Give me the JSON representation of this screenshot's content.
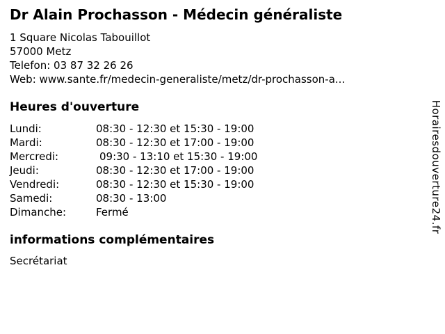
{
  "business": {
    "title": "Dr Alain Prochasson - Médecin généraliste",
    "address_line1": "1 Square Nicolas Tabouillot",
    "address_line2": "57000 Metz",
    "phone_label": "Telefon:",
    "phone_number": "03 87 32 26 26",
    "web_label": "Web:",
    "web_url": "www.sante.fr/medecin-generaliste/metz/dr-prochasson-a..."
  },
  "hours": {
    "heading": "Heures d'ouverture",
    "rows": [
      {
        "day": "Lundi:",
        "time": "08:30 - 12:30 et 15:30 - 19:00"
      },
      {
        "day": "Mardi:",
        "time": "08:30 - 12:30 et 17:00 - 19:00"
      },
      {
        "day": "Mercredi:",
        "time": "09:30 - 13:10 et 15:30 - 19:00"
      },
      {
        "day": "Jeudi:",
        "time": "08:30 - 12:30 et 17:00 - 19:00"
      },
      {
        "day": "Vendredi:",
        "time": "08:30 - 12:30 et 15:30 - 19:00"
      },
      {
        "day": "Samedi:",
        "time": "08:30 - 13:00"
      },
      {
        "day": "Dimanche:",
        "time": "Fermé"
      }
    ]
  },
  "extra": {
    "heading": "informations complémentaires",
    "text": "Secrétariat"
  },
  "watermark": {
    "text": "Horairesdouverture24.fr"
  },
  "colors": {
    "text": "#000000",
    "background": "#ffffff"
  }
}
